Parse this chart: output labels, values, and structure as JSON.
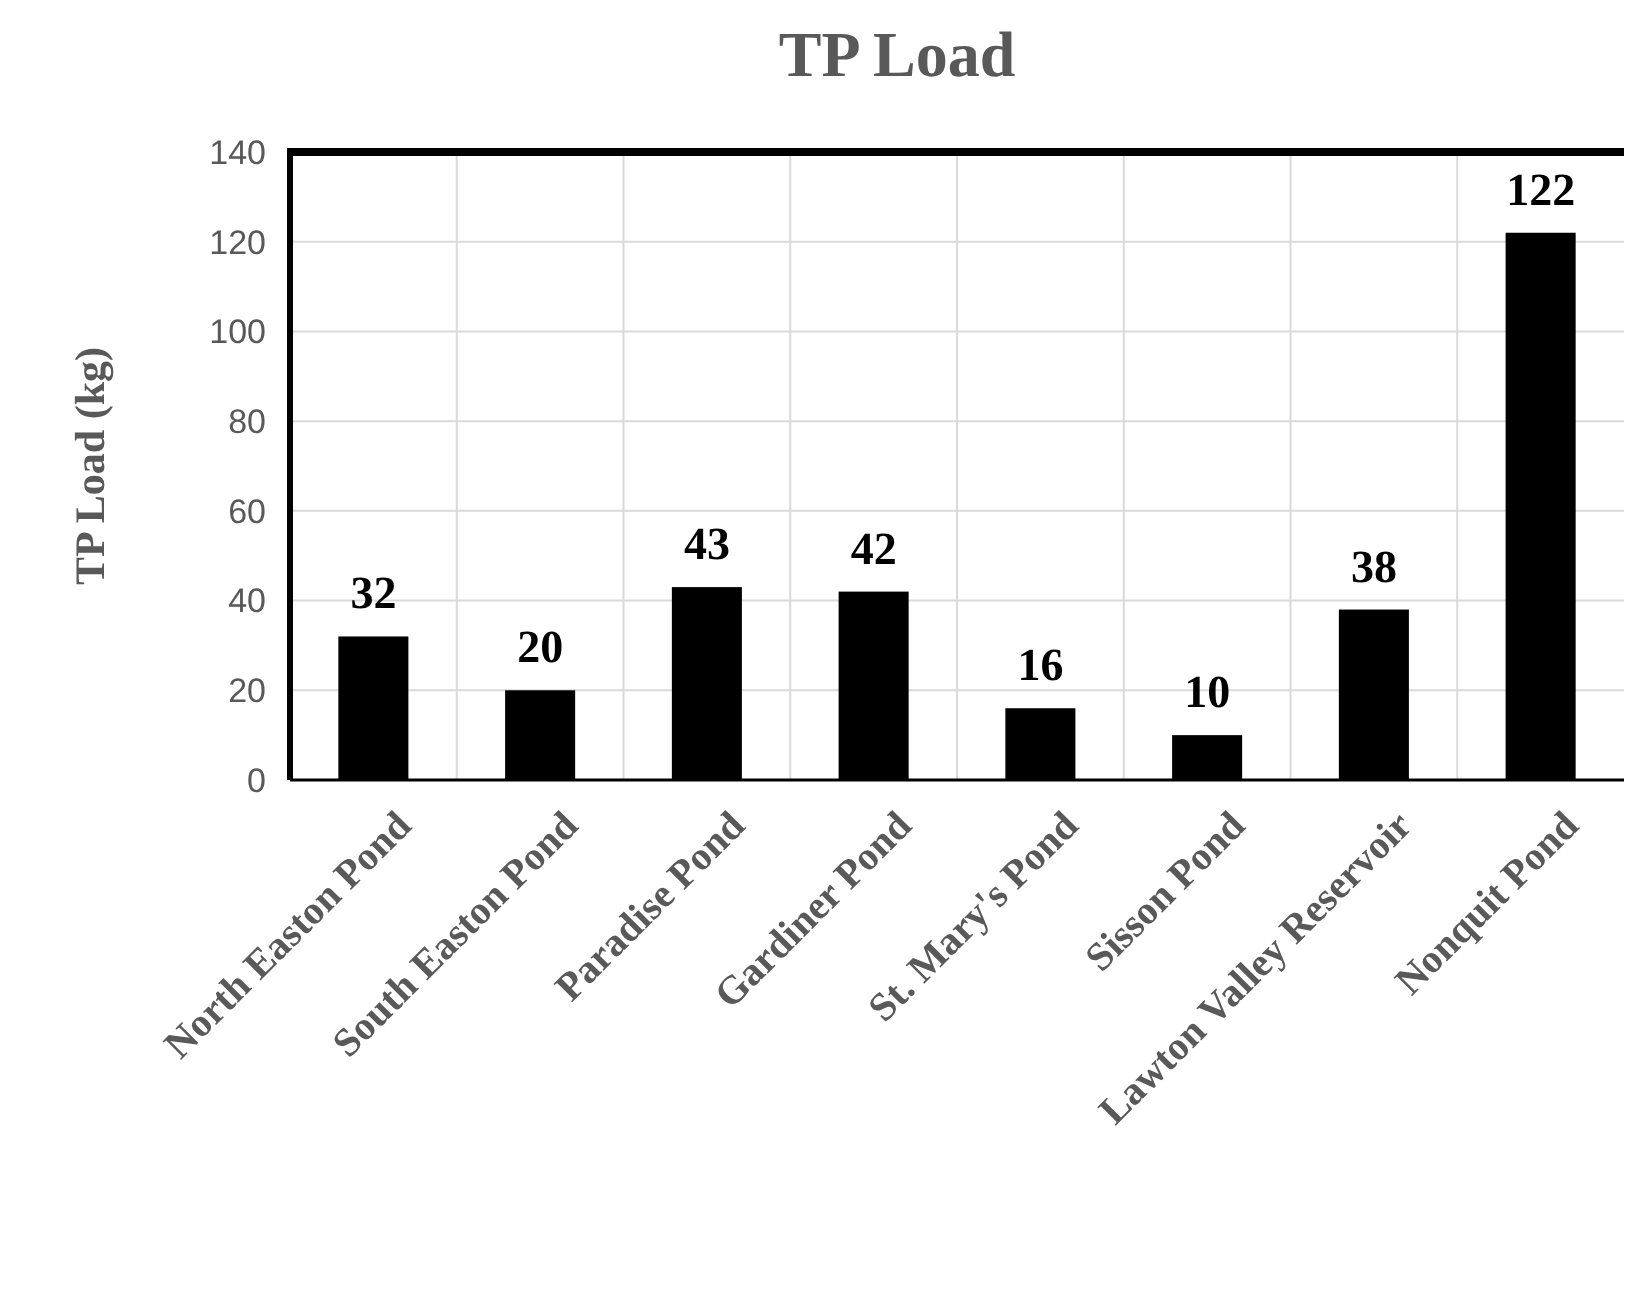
{
  "chart_data": {
    "type": "bar",
    "title": "TP Load",
    "ylabel": "TP Load (kg)",
    "categories": [
      "North Easton Pond",
      "South Easton Pond",
      "Paradise Pond",
      "Gardiner Pond",
      "St. Mary's Pond",
      "Sisson Pond",
      "Lawton Valley Reservoir",
      "Nonquit Pond"
    ],
    "values": [
      32,
      20,
      43,
      42,
      16,
      10,
      38,
      122
    ],
    "color": "#000000",
    "ylim": [
      0,
      140
    ],
    "yticks": [
      0,
      20,
      40,
      60,
      80,
      100,
      120,
      140
    ],
    "grid": true,
    "data_labels": true
  }
}
